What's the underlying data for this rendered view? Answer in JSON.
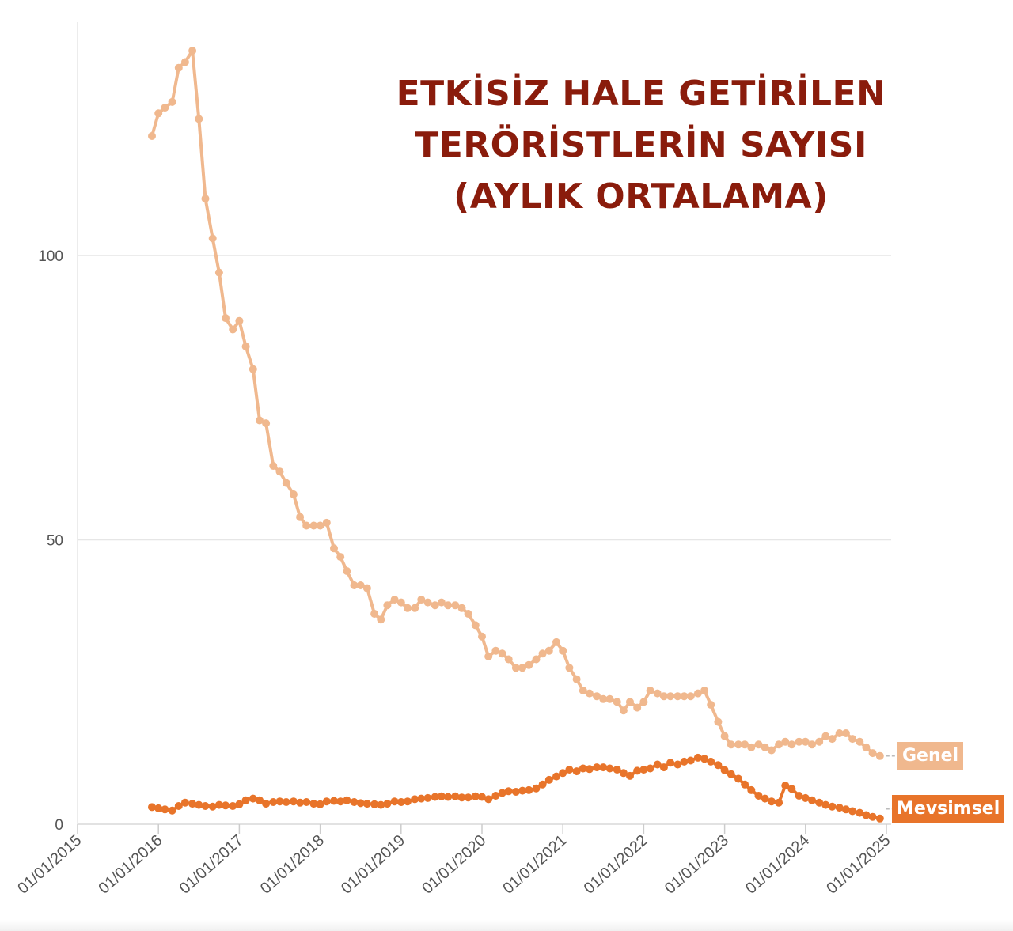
{
  "chart_data": {
    "type": "line",
    "title_lines": [
      "ETKİSİZ HALE GETİRİLEN",
      "TERÖRİSTLERİN SAYISI",
      "(AYLIK ORTALAMA)"
    ],
    "x_ticks": [
      "01/01/2015",
      "01/01/2016",
      "01/01/2017",
      "01/01/2018",
      "01/01/2019",
      "01/01/2020",
      "01/01/2021",
      "01/01/2022",
      "01/01/2023",
      "01/01/2024",
      "01/01/2025"
    ],
    "y_ticks": [
      0,
      50,
      100
    ],
    "ylim": [
      0,
      140
    ],
    "xlim_years": [
      2015,
      2025
    ],
    "grid": true,
    "series": [
      {
        "name": "Genel",
        "color": "#f0b88e",
        "points": [
          [
            2015.92,
            121
          ],
          [
            2016.0,
            125
          ],
          [
            2016.08,
            126
          ],
          [
            2016.17,
            127
          ],
          [
            2016.25,
            133
          ],
          [
            2016.33,
            134
          ],
          [
            2016.42,
            136
          ],
          [
            2016.5,
            124
          ],
          [
            2016.58,
            110
          ],
          [
            2016.67,
            103
          ],
          [
            2016.75,
            97
          ],
          [
            2016.83,
            89
          ],
          [
            2016.92,
            87
          ],
          [
            2017.0,
            88.5
          ],
          [
            2017.08,
            84
          ],
          [
            2017.17,
            80
          ],
          [
            2017.25,
            71
          ],
          [
            2017.33,
            70.5
          ],
          [
            2017.42,
            63
          ],
          [
            2017.5,
            62
          ],
          [
            2017.58,
            60
          ],
          [
            2017.67,
            58
          ],
          [
            2017.75,
            54
          ],
          [
            2017.83,
            52.5
          ],
          [
            2017.92,
            52.5
          ],
          [
            2018.0,
            52.5
          ],
          [
            2018.08,
            53
          ],
          [
            2018.17,
            48.5
          ],
          [
            2018.25,
            47
          ],
          [
            2018.33,
            44.5
          ],
          [
            2018.42,
            42
          ],
          [
            2018.5,
            42
          ],
          [
            2018.58,
            41.5
          ],
          [
            2018.67,
            37
          ],
          [
            2018.75,
            36
          ],
          [
            2018.83,
            38.5
          ],
          [
            2018.92,
            39.5
          ],
          [
            2019.0,
            39
          ],
          [
            2019.08,
            38
          ],
          [
            2019.17,
            38
          ],
          [
            2019.25,
            39.5
          ],
          [
            2019.33,
            39
          ],
          [
            2019.42,
            38.5
          ],
          [
            2019.5,
            39
          ],
          [
            2019.58,
            38.5
          ],
          [
            2019.67,
            38.5
          ],
          [
            2019.75,
            38
          ],
          [
            2019.83,
            37
          ],
          [
            2019.92,
            35
          ],
          [
            2020.0,
            33
          ],
          [
            2020.08,
            29.5
          ],
          [
            2020.17,
            30.5
          ],
          [
            2020.25,
            30
          ],
          [
            2020.33,
            29
          ],
          [
            2020.42,
            27.5
          ],
          [
            2020.5,
            27.5
          ],
          [
            2020.58,
            28
          ],
          [
            2020.67,
            29
          ],
          [
            2020.75,
            30
          ],
          [
            2020.83,
            30.5
          ],
          [
            2020.92,
            32
          ],
          [
            2021.0,
            30.5
          ],
          [
            2021.08,
            27.5
          ],
          [
            2021.17,
            25.5
          ],
          [
            2021.25,
            23.5
          ],
          [
            2021.33,
            23
          ],
          [
            2021.42,
            22.5
          ],
          [
            2021.5,
            22
          ],
          [
            2021.58,
            22
          ],
          [
            2021.67,
            21.5
          ],
          [
            2021.75,
            20
          ],
          [
            2021.83,
            21.5
          ],
          [
            2021.92,
            20.5
          ],
          [
            2022.0,
            21.5
          ],
          [
            2022.08,
            23.5
          ],
          [
            2022.17,
            23
          ],
          [
            2022.25,
            22.5
          ],
          [
            2022.33,
            22.5
          ],
          [
            2022.42,
            22.5
          ],
          [
            2022.5,
            22.5
          ],
          [
            2022.58,
            22.5
          ],
          [
            2022.67,
            23
          ],
          [
            2022.75,
            23.5
          ],
          [
            2022.83,
            21
          ],
          [
            2022.92,
            18
          ],
          [
            2023.0,
            15.5
          ],
          [
            2023.08,
            14
          ],
          [
            2023.17,
            14
          ],
          [
            2023.25,
            14
          ],
          [
            2023.33,
            13.5
          ],
          [
            2023.42,
            14
          ],
          [
            2023.5,
            13.5
          ],
          [
            2023.58,
            13
          ],
          [
            2023.67,
            14
          ],
          [
            2023.75,
            14.5
          ],
          [
            2023.83,
            14
          ],
          [
            2023.92,
            14.5
          ],
          [
            2024.0,
            14.5
          ],
          [
            2024.08,
            14
          ],
          [
            2024.17,
            14.5
          ],
          [
            2024.25,
            15.5
          ],
          [
            2024.33,
            15
          ],
          [
            2024.42,
            16
          ],
          [
            2024.5,
            16
          ],
          [
            2024.58,
            15
          ],
          [
            2024.67,
            14.5
          ],
          [
            2024.75,
            13.5
          ],
          [
            2024.83,
            12.5
          ],
          [
            2024.92,
            12
          ]
        ]
      },
      {
        "name": "Mevsimsel",
        "color": "#e8742a",
        "points": [
          [
            2015.92,
            3
          ],
          [
            2016.0,
            2.8
          ],
          [
            2016.08,
            2.6
          ],
          [
            2016.17,
            2.4
          ],
          [
            2016.25,
            3.2
          ],
          [
            2016.33,
            3.8
          ],
          [
            2016.42,
            3.6
          ],
          [
            2016.5,
            3.4
          ],
          [
            2016.58,
            3.2
          ],
          [
            2016.67,
            3.1
          ],
          [
            2016.75,
            3.4
          ],
          [
            2016.83,
            3.3
          ],
          [
            2016.92,
            3.2
          ],
          [
            2017.0,
            3.5
          ],
          [
            2017.08,
            4.2
          ],
          [
            2017.17,
            4.5
          ],
          [
            2017.25,
            4.2
          ],
          [
            2017.33,
            3.6
          ],
          [
            2017.42,
            3.9
          ],
          [
            2017.5,
            4
          ],
          [
            2017.58,
            3.9
          ],
          [
            2017.67,
            4
          ],
          [
            2017.75,
            3.8
          ],
          [
            2017.83,
            3.9
          ],
          [
            2017.92,
            3.6
          ],
          [
            2018.0,
            3.5
          ],
          [
            2018.08,
            4
          ],
          [
            2018.17,
            4.1
          ],
          [
            2018.25,
            4
          ],
          [
            2018.33,
            4.2
          ],
          [
            2018.42,
            3.9
          ],
          [
            2018.5,
            3.7
          ],
          [
            2018.58,
            3.6
          ],
          [
            2018.67,
            3.5
          ],
          [
            2018.75,
            3.4
          ],
          [
            2018.83,
            3.6
          ],
          [
            2018.92,
            4
          ],
          [
            2019.0,
            3.9
          ],
          [
            2019.08,
            4
          ],
          [
            2019.17,
            4.4
          ],
          [
            2019.25,
            4.5
          ],
          [
            2019.33,
            4.6
          ],
          [
            2019.42,
            4.8
          ],
          [
            2019.5,
            4.9
          ],
          [
            2019.58,
            4.8
          ],
          [
            2019.67,
            4.9
          ],
          [
            2019.75,
            4.7
          ],
          [
            2019.83,
            4.7
          ],
          [
            2019.92,
            4.9
          ],
          [
            2020.0,
            4.8
          ],
          [
            2020.08,
            4.4
          ],
          [
            2020.17,
            5
          ],
          [
            2020.25,
            5.5
          ],
          [
            2020.33,
            5.8
          ],
          [
            2020.42,
            5.7
          ],
          [
            2020.5,
            5.9
          ],
          [
            2020.58,
            6
          ],
          [
            2020.67,
            6.3
          ],
          [
            2020.75,
            7
          ],
          [
            2020.83,
            7.8
          ],
          [
            2020.92,
            8.4
          ],
          [
            2021.0,
            9
          ],
          [
            2021.08,
            9.6
          ],
          [
            2021.17,
            9.3
          ],
          [
            2021.25,
            9.8
          ],
          [
            2021.33,
            9.7
          ],
          [
            2021.42,
            10
          ],
          [
            2021.5,
            10
          ],
          [
            2021.58,
            9.8
          ],
          [
            2021.67,
            9.6
          ],
          [
            2021.75,
            9
          ],
          [
            2021.83,
            8.5
          ],
          [
            2021.92,
            9.4
          ],
          [
            2022.0,
            9.6
          ],
          [
            2022.08,
            9.8
          ],
          [
            2022.17,
            10.5
          ],
          [
            2022.25,
            10
          ],
          [
            2022.33,
            10.8
          ],
          [
            2022.42,
            10.5
          ],
          [
            2022.5,
            11
          ],
          [
            2022.58,
            11.2
          ],
          [
            2022.67,
            11.7
          ],
          [
            2022.75,
            11.5
          ],
          [
            2022.83,
            11
          ],
          [
            2022.92,
            10.4
          ],
          [
            2023.0,
            9.5
          ],
          [
            2023.08,
            8.8
          ],
          [
            2023.17,
            8
          ],
          [
            2023.25,
            7
          ],
          [
            2023.33,
            6
          ],
          [
            2023.42,
            5
          ],
          [
            2023.5,
            4.5
          ],
          [
            2023.58,
            4
          ],
          [
            2023.67,
            3.8
          ],
          [
            2023.75,
            6.8
          ],
          [
            2023.83,
            6.2
          ],
          [
            2023.92,
            5
          ],
          [
            2024.0,
            4.6
          ],
          [
            2024.08,
            4.2
          ],
          [
            2024.17,
            3.8
          ],
          [
            2024.25,
            3.4
          ],
          [
            2024.33,
            3.1
          ],
          [
            2024.42,
            2.9
          ],
          [
            2024.5,
            2.6
          ],
          [
            2024.58,
            2.3
          ],
          [
            2024.67,
            2
          ],
          [
            2024.75,
            1.6
          ],
          [
            2024.83,
            1.3
          ],
          [
            2024.92,
            1
          ]
        ]
      }
    ]
  }
}
